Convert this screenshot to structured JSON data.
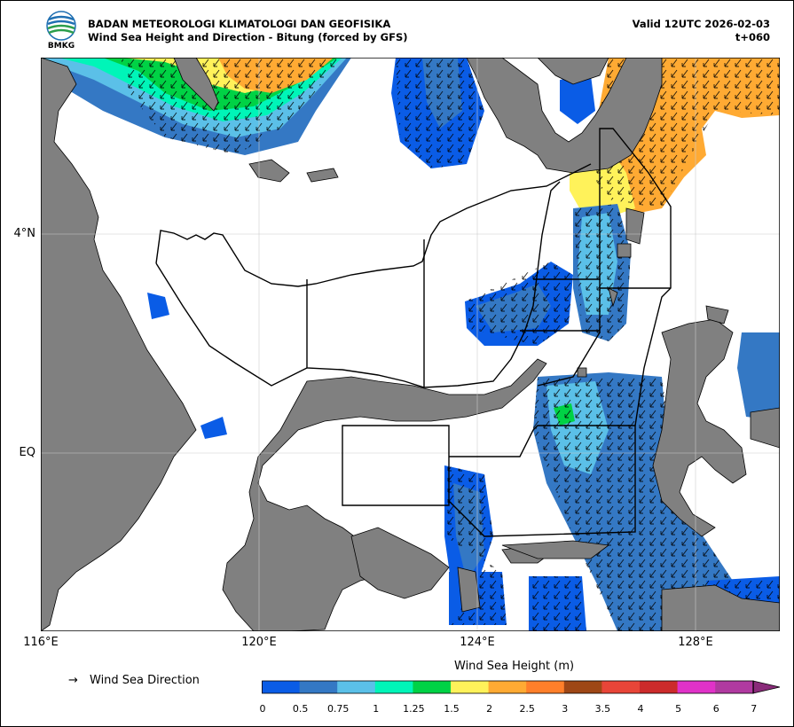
{
  "header": {
    "title_line1": "BADAN METEOROLOGI KLIMATOLOGI DAN GEOFISIKA",
    "title_line2": "Wind Sea Height and Direction - Bitung (forced by GFS)",
    "valid": "Valid 12UTC 2026-02-03",
    "lead": "t+060",
    "logo_text": "BMKG"
  },
  "axes": {
    "lat_labels": [
      "4°N",
      "EQ"
    ],
    "lon_labels": [
      "116°E",
      "120°E",
      "124°E",
      "128°E"
    ]
  },
  "legend": {
    "arrow_symbol": "→",
    "arrow_label": "Wind Sea Direction",
    "colorbar_title": "Wind Sea Height (m)",
    "ticks": [
      "0",
      "0.5",
      "0.75",
      "1",
      "1.25",
      "1.5",
      "2",
      "2.5",
      "3",
      "3.5",
      "4",
      "5",
      "6",
      "7"
    ],
    "colors": [
      "#0a5ce6",
      "#3478c4",
      "#5bc0e8",
      "#00f5b8",
      "#00d245",
      "#fff25a",
      "#ffaa33",
      "#ff7f2a",
      "#9e4716",
      "#e84538",
      "#cc2b2b",
      "#e032c8",
      "#b03aa0"
    ]
  },
  "map_colors": {
    "land": "#808080",
    "sea_calm": "#ffffff",
    "arrow": "#000000"
  }
}
